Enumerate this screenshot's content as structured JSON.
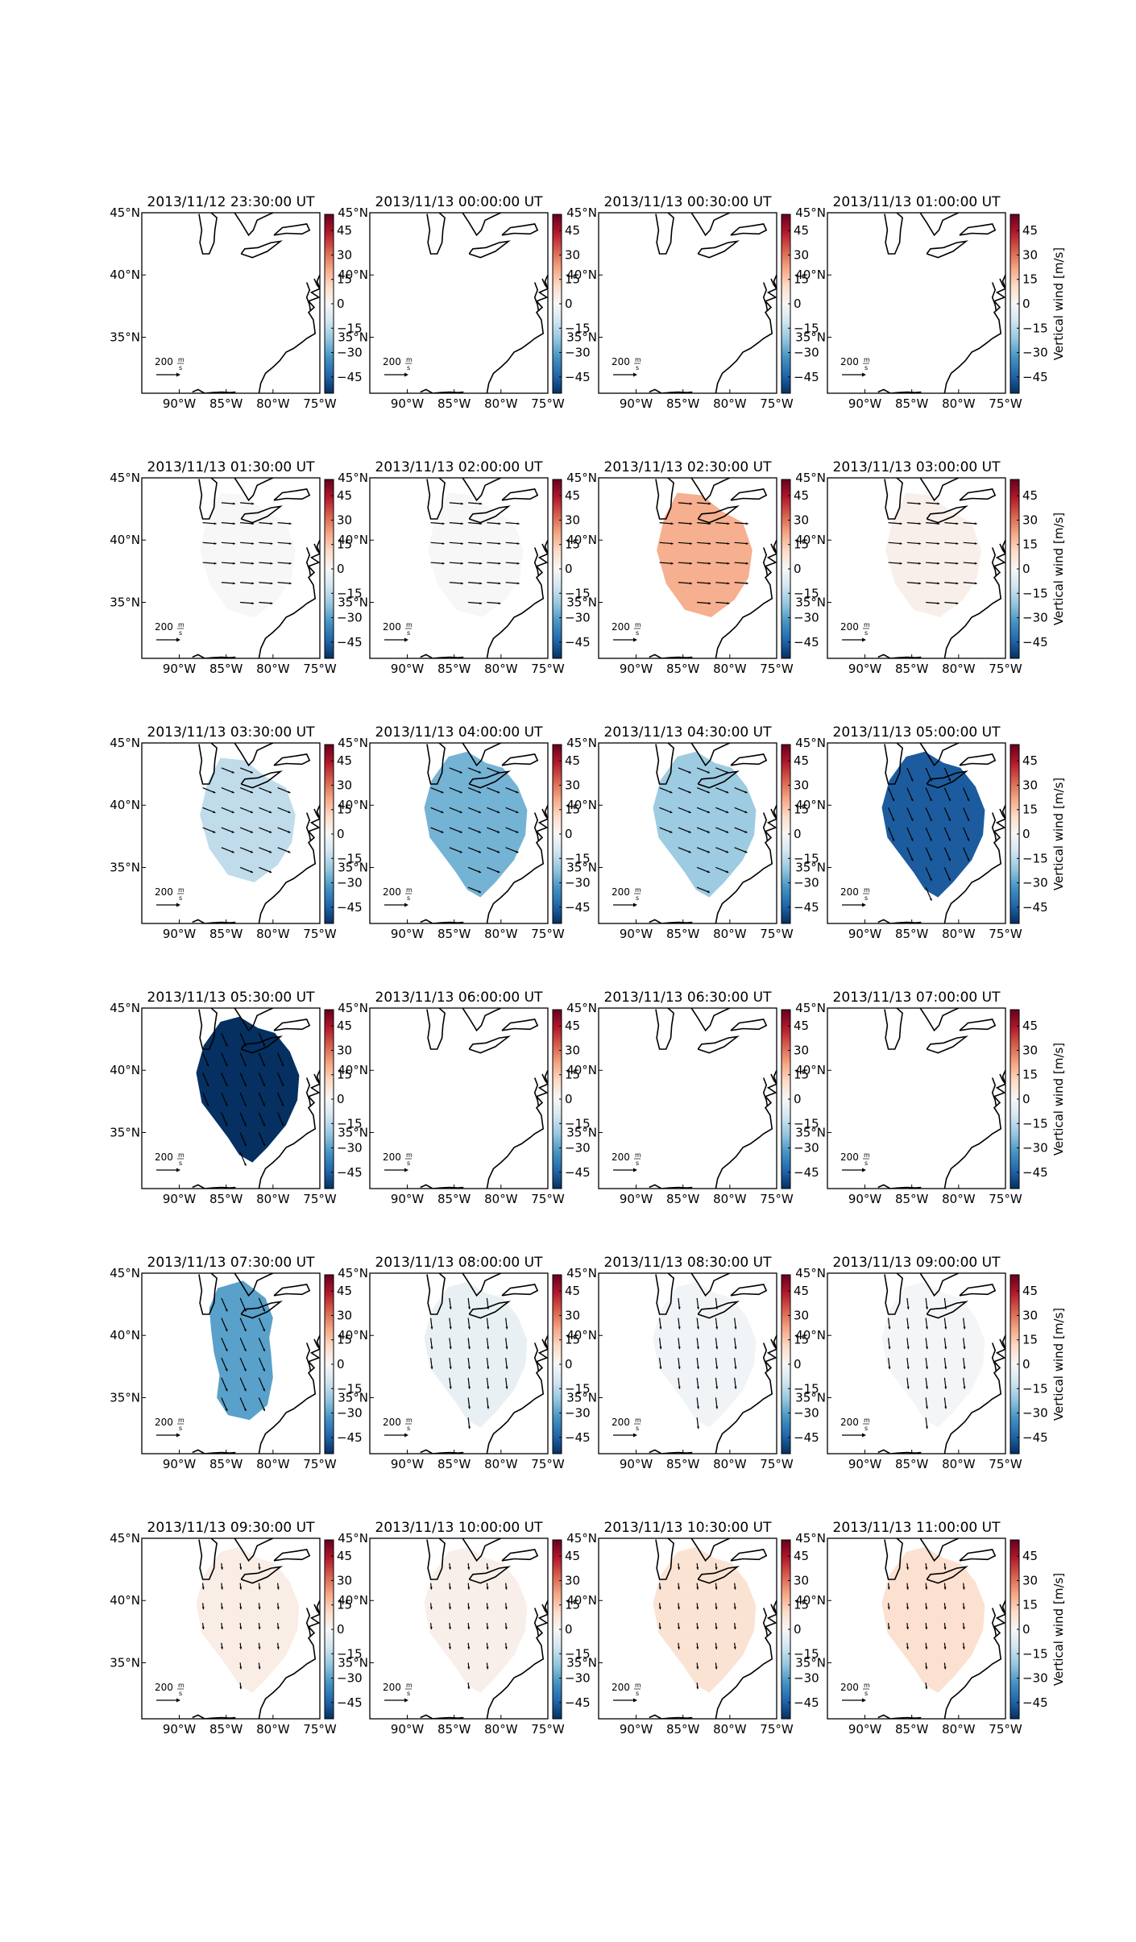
{
  "figure": {
    "lon_ticks": [
      "90°W",
      "85°W",
      "80°W",
      "75°W"
    ],
    "lat_ticks": [
      "45°N",
      "40°N",
      "35°N"
    ],
    "lon_range": [
      -94,
      -75
    ],
    "lat_range": [
      30.5,
      45
    ],
    "colorbar": {
      "label": "Vertical wind [m/s]",
      "ticks": [
        "45",
        "30",
        "15",
        "0",
        "−15",
        "−30",
        "−45"
      ],
      "tick_values": [
        45,
        30,
        15,
        0,
        -15,
        -30,
        -45
      ],
      "range": [
        -55,
        55
      ],
      "colormap": "RdBu_r",
      "colors": [
        "#053061",
        "#2166ac",
        "#4393c3",
        "#92c5de",
        "#d1e5f0",
        "#f7f7f7",
        "#fddbc7",
        "#f4a582",
        "#d6604d",
        "#b2182b",
        "#67001f"
      ]
    },
    "scale_arrow": {
      "value": "200",
      "unit_num": "m",
      "unit_den": "s"
    },
    "coastline_color": "#000000"
  },
  "panels": [
    {
      "title": "2013/11/12 23:30:00 UT",
      "vertical_wind": null,
      "arrows": "none",
      "region": "none"
    },
    {
      "title": "2013/11/13 00:00:00 UT",
      "vertical_wind": null,
      "arrows": "none",
      "region": "none"
    },
    {
      "title": "2013/11/13 00:30:00 UT",
      "vertical_wind": null,
      "arrows": "none",
      "region": "none"
    },
    {
      "title": "2013/11/13 01:00:00 UT",
      "vertical_wind": null,
      "arrows": "none",
      "region": "none"
    },
    {
      "title": "2013/11/13 01:30:00 UT",
      "vertical_wind": 0,
      "arrows": "east",
      "region": "band"
    },
    {
      "title": "2013/11/13 02:00:00 UT",
      "vertical_wind": 0,
      "arrows": "east",
      "region": "band"
    },
    {
      "title": "2013/11/13 02:30:00 UT",
      "vertical_wind": 20,
      "arrows": "east",
      "region": "band"
    },
    {
      "title": "2013/11/13 03:00:00 UT",
      "vertical_wind": 3,
      "arrows": "east",
      "region": "band"
    },
    {
      "title": "2013/11/13 03:30:00 UT",
      "vertical_wind": -14,
      "arrows": "southeast",
      "region": "band"
    },
    {
      "title": "2013/11/13 04:00:00 UT",
      "vertical_wind": -26,
      "arrows": "southeast",
      "region": "blob"
    },
    {
      "title": "2013/11/13 04:30:00 UT",
      "vertical_wind": -20,
      "arrows": "southeast",
      "region": "blob"
    },
    {
      "title": "2013/11/13 05:00:00 UT",
      "vertical_wind": -46,
      "arrows": "south-southeast",
      "region": "blob"
    },
    {
      "title": "2013/11/13 05:30:00 UT",
      "vertical_wind": -55,
      "arrows": "south-southeast",
      "region": "blob"
    },
    {
      "title": "2013/11/13 06:00:00 UT",
      "vertical_wind": null,
      "arrows": "none",
      "region": "none"
    },
    {
      "title": "2013/11/13 06:30:00 UT",
      "vertical_wind": null,
      "arrows": "none",
      "region": "none"
    },
    {
      "title": "2013/11/13 07:00:00 UT",
      "vertical_wind": null,
      "arrows": "none",
      "region": "none"
    },
    {
      "title": "2013/11/13 07:30:00 UT",
      "vertical_wind": -30,
      "arrows": "south-southeast",
      "region": "lobes"
    },
    {
      "title": "2013/11/13 08:00:00 UT",
      "vertical_wind": -4,
      "arrows": "south",
      "region": "blob"
    },
    {
      "title": "2013/11/13 08:30:00 UT",
      "vertical_wind": -2,
      "arrows": "south",
      "region": "blob"
    },
    {
      "title": "2013/11/13 09:00:00 UT",
      "vertical_wind": -1,
      "arrows": "south",
      "region": "blob"
    },
    {
      "title": "2013/11/13 09:30:00 UT",
      "vertical_wind": 4,
      "arrows": "south-small",
      "region": "blob"
    },
    {
      "title": "2013/11/13 10:00:00 UT",
      "vertical_wind": 3,
      "arrows": "south-small",
      "region": "blob"
    },
    {
      "title": "2013/11/13 10:30:00 UT",
      "vertical_wind": 8,
      "arrows": "south-small",
      "region": "blob"
    },
    {
      "title": "2013/11/13 11:00:00 UT",
      "vertical_wind": 9,
      "arrows": "south-small",
      "region": "blob"
    }
  ]
}
